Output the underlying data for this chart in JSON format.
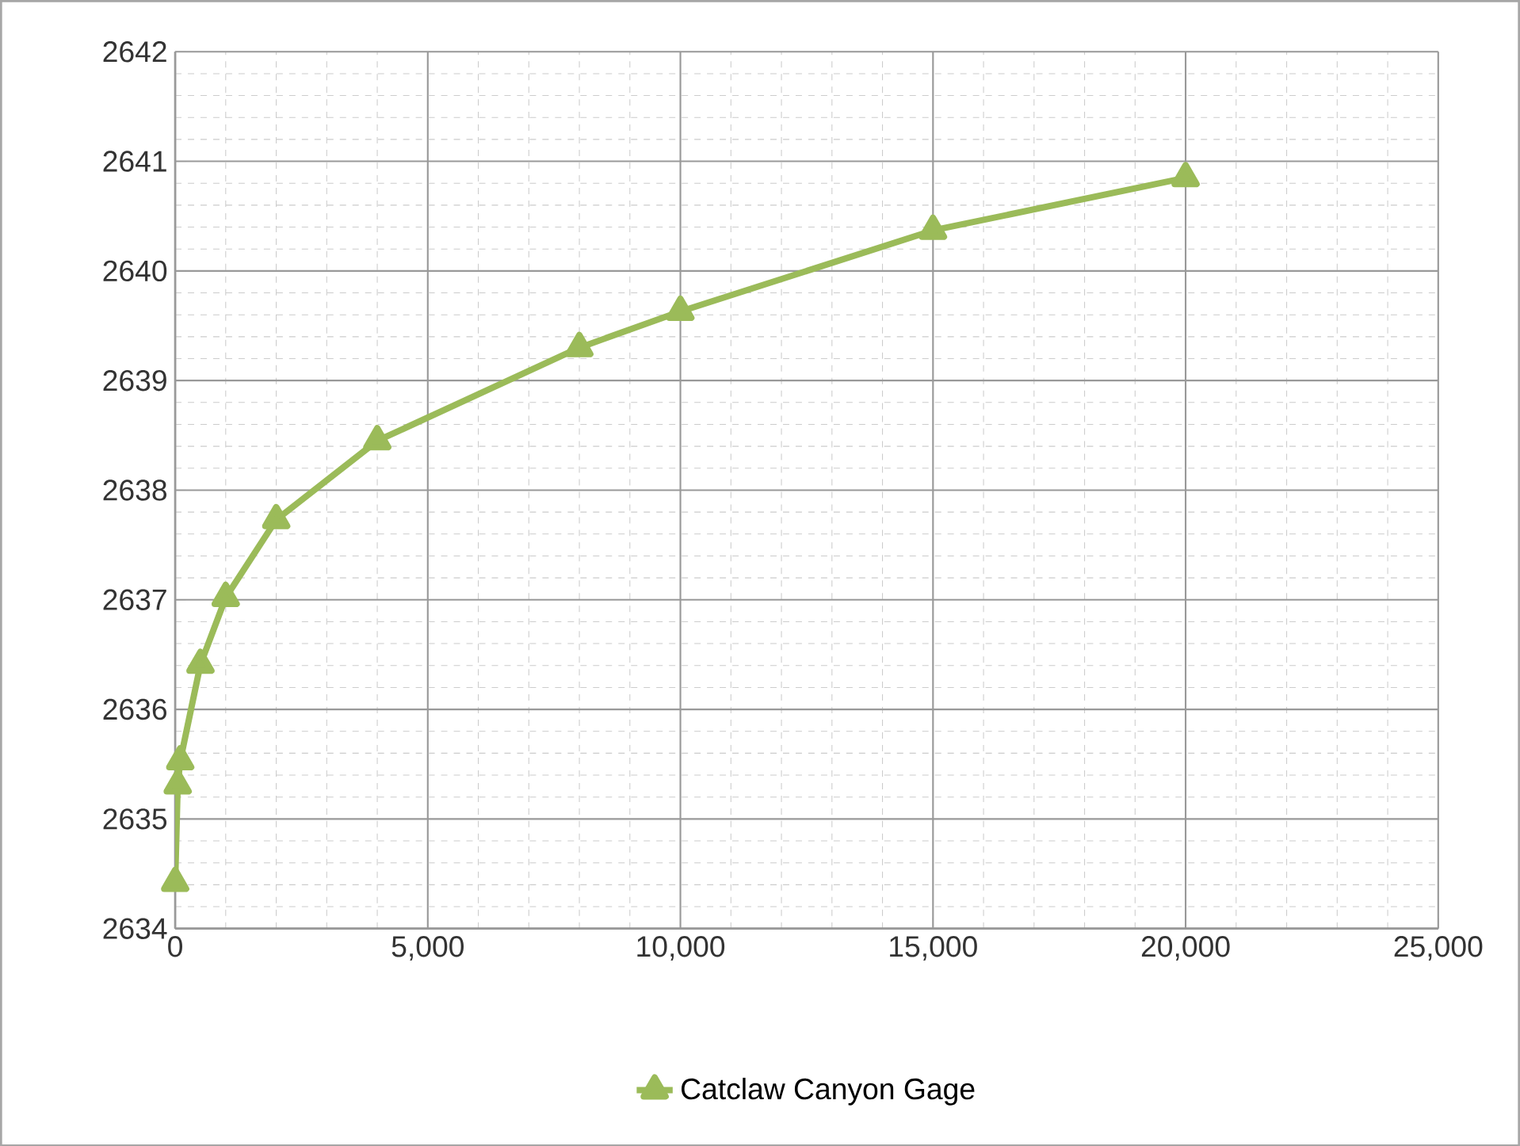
{
  "chart_data": {
    "type": "line",
    "x": [
      0,
      50,
      100,
      500,
      1000,
      2000,
      4000,
      8000,
      10000,
      15000,
      20000
    ],
    "series": [
      {
        "name": "Catclaw Canyon Gage",
        "color": "#9bbb59",
        "values": [
          2634.42,
          2635.31,
          2635.53,
          2636.41,
          2637.02,
          2637.73,
          2638.45,
          2639.3,
          2639.63,
          2640.37,
          2640.85
        ]
      }
    ],
    "xlim": [
      0,
      25000
    ],
    "xticks": [
      {
        "value": 0,
        "label": "0"
      },
      {
        "value": 5000,
        "label": "5,000"
      },
      {
        "value": 10000,
        "label": "10,000"
      },
      {
        "value": 15000,
        "label": "15,000"
      },
      {
        "value": 20000,
        "label": "20,000"
      },
      {
        "value": 25000,
        "label": "25,000"
      }
    ],
    "ylim": [
      2634,
      2642
    ],
    "yticks": [
      2634,
      2635,
      2636,
      2637,
      2638,
      2639,
      2640,
      2641,
      2642
    ],
    "grid": true,
    "legend": "bottom",
    "marker": "triangle",
    "line_style": "solid"
  }
}
